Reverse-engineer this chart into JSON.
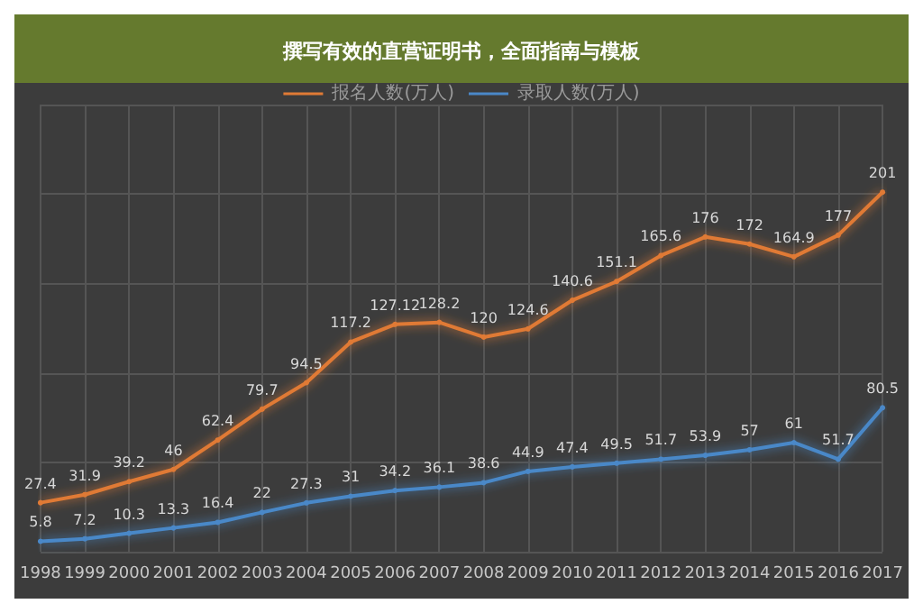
{
  "chart_data": {
    "type": "line",
    "title": "撰写有效的直营证明书，全面指南与模板",
    "categories": [
      "1998",
      "1999",
      "2000",
      "2001",
      "2002",
      "2003",
      "2004",
      "2005",
      "2006",
      "2007",
      "2008",
      "2009",
      "2010",
      "2011",
      "2012",
      "2013",
      "2014",
      "2015",
      "2016",
      "2017"
    ],
    "series": [
      {
        "name": "报名人数(万人)",
        "color": "#e07a35",
        "values": [
          27.4,
          31.9,
          39.2,
          46,
          62.4,
          79.7,
          94.5,
          117.2,
          127.12,
          128.2,
          120,
          124.6,
          140.6,
          151.1,
          165.6,
          176,
          172,
          164.9,
          177,
          201
        ]
      },
      {
        "name": "录取人数(万人)",
        "color": "#4a88c8",
        "values": [
          5.8,
          7.2,
          10.3,
          13.3,
          16.4,
          22,
          27.3,
          31,
          34.2,
          36.1,
          38.6,
          44.9,
          47.4,
          49.5,
          51.7,
          53.9,
          57,
          61,
          51.7,
          80.5
        ]
      }
    ],
    "ylim": [
      0,
      250
    ],
    "yticks": [
      {
        "value": 0,
        "label": null
      },
      {
        "value": 50,
        "label": null
      },
      {
        "value": 100,
        "label": null
      },
      {
        "value": 150,
        "label": null
      },
      {
        "value": 200,
        "label": null
      },
      {
        "value": 250,
        "label": null
      }
    ],
    "tick_labels": "x",
    "grid": true,
    "legend": "top",
    "marker": "circle",
    "data_labels": true
  }
}
